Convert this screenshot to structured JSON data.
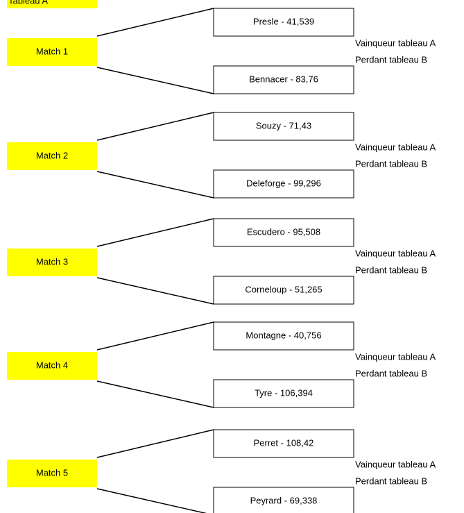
{
  "header": {
    "title": "Tableau A"
  },
  "matches": [
    {
      "label": "Match 1",
      "players": [
        "Presle - 41,539",
        "Bennacer - 83,76"
      ],
      "winner_note": "Vainqueur tableau A",
      "loser_note": "Perdant tableau B"
    },
    {
      "label": "Match 2",
      "players": [
        "Souzy - 71,43",
        "Deleforge - 99,296"
      ],
      "winner_note": "Vainqueur tableau A",
      "loser_note": "Perdant tableau B"
    },
    {
      "label": "Match 3",
      "players": [
        "Escudero - 95,508",
        "Corneloup - 51,265"
      ],
      "winner_note": "Vainqueur tableau A",
      "loser_note": "Perdant tableau B"
    },
    {
      "label": "Match 4",
      "players": [
        "Montagne - 40,756",
        "Tyre - 106,394"
      ],
      "winner_note": "Vainqueur tableau A",
      "loser_note": "Perdant tableau B"
    },
    {
      "label": "Match 5",
      "players": [
        "Perret - 108,42",
        "Peyrard - 69,338"
      ],
      "winner_note": "Vainqueur tableau A",
      "loser_note": "Perdant tableau B"
    }
  ]
}
